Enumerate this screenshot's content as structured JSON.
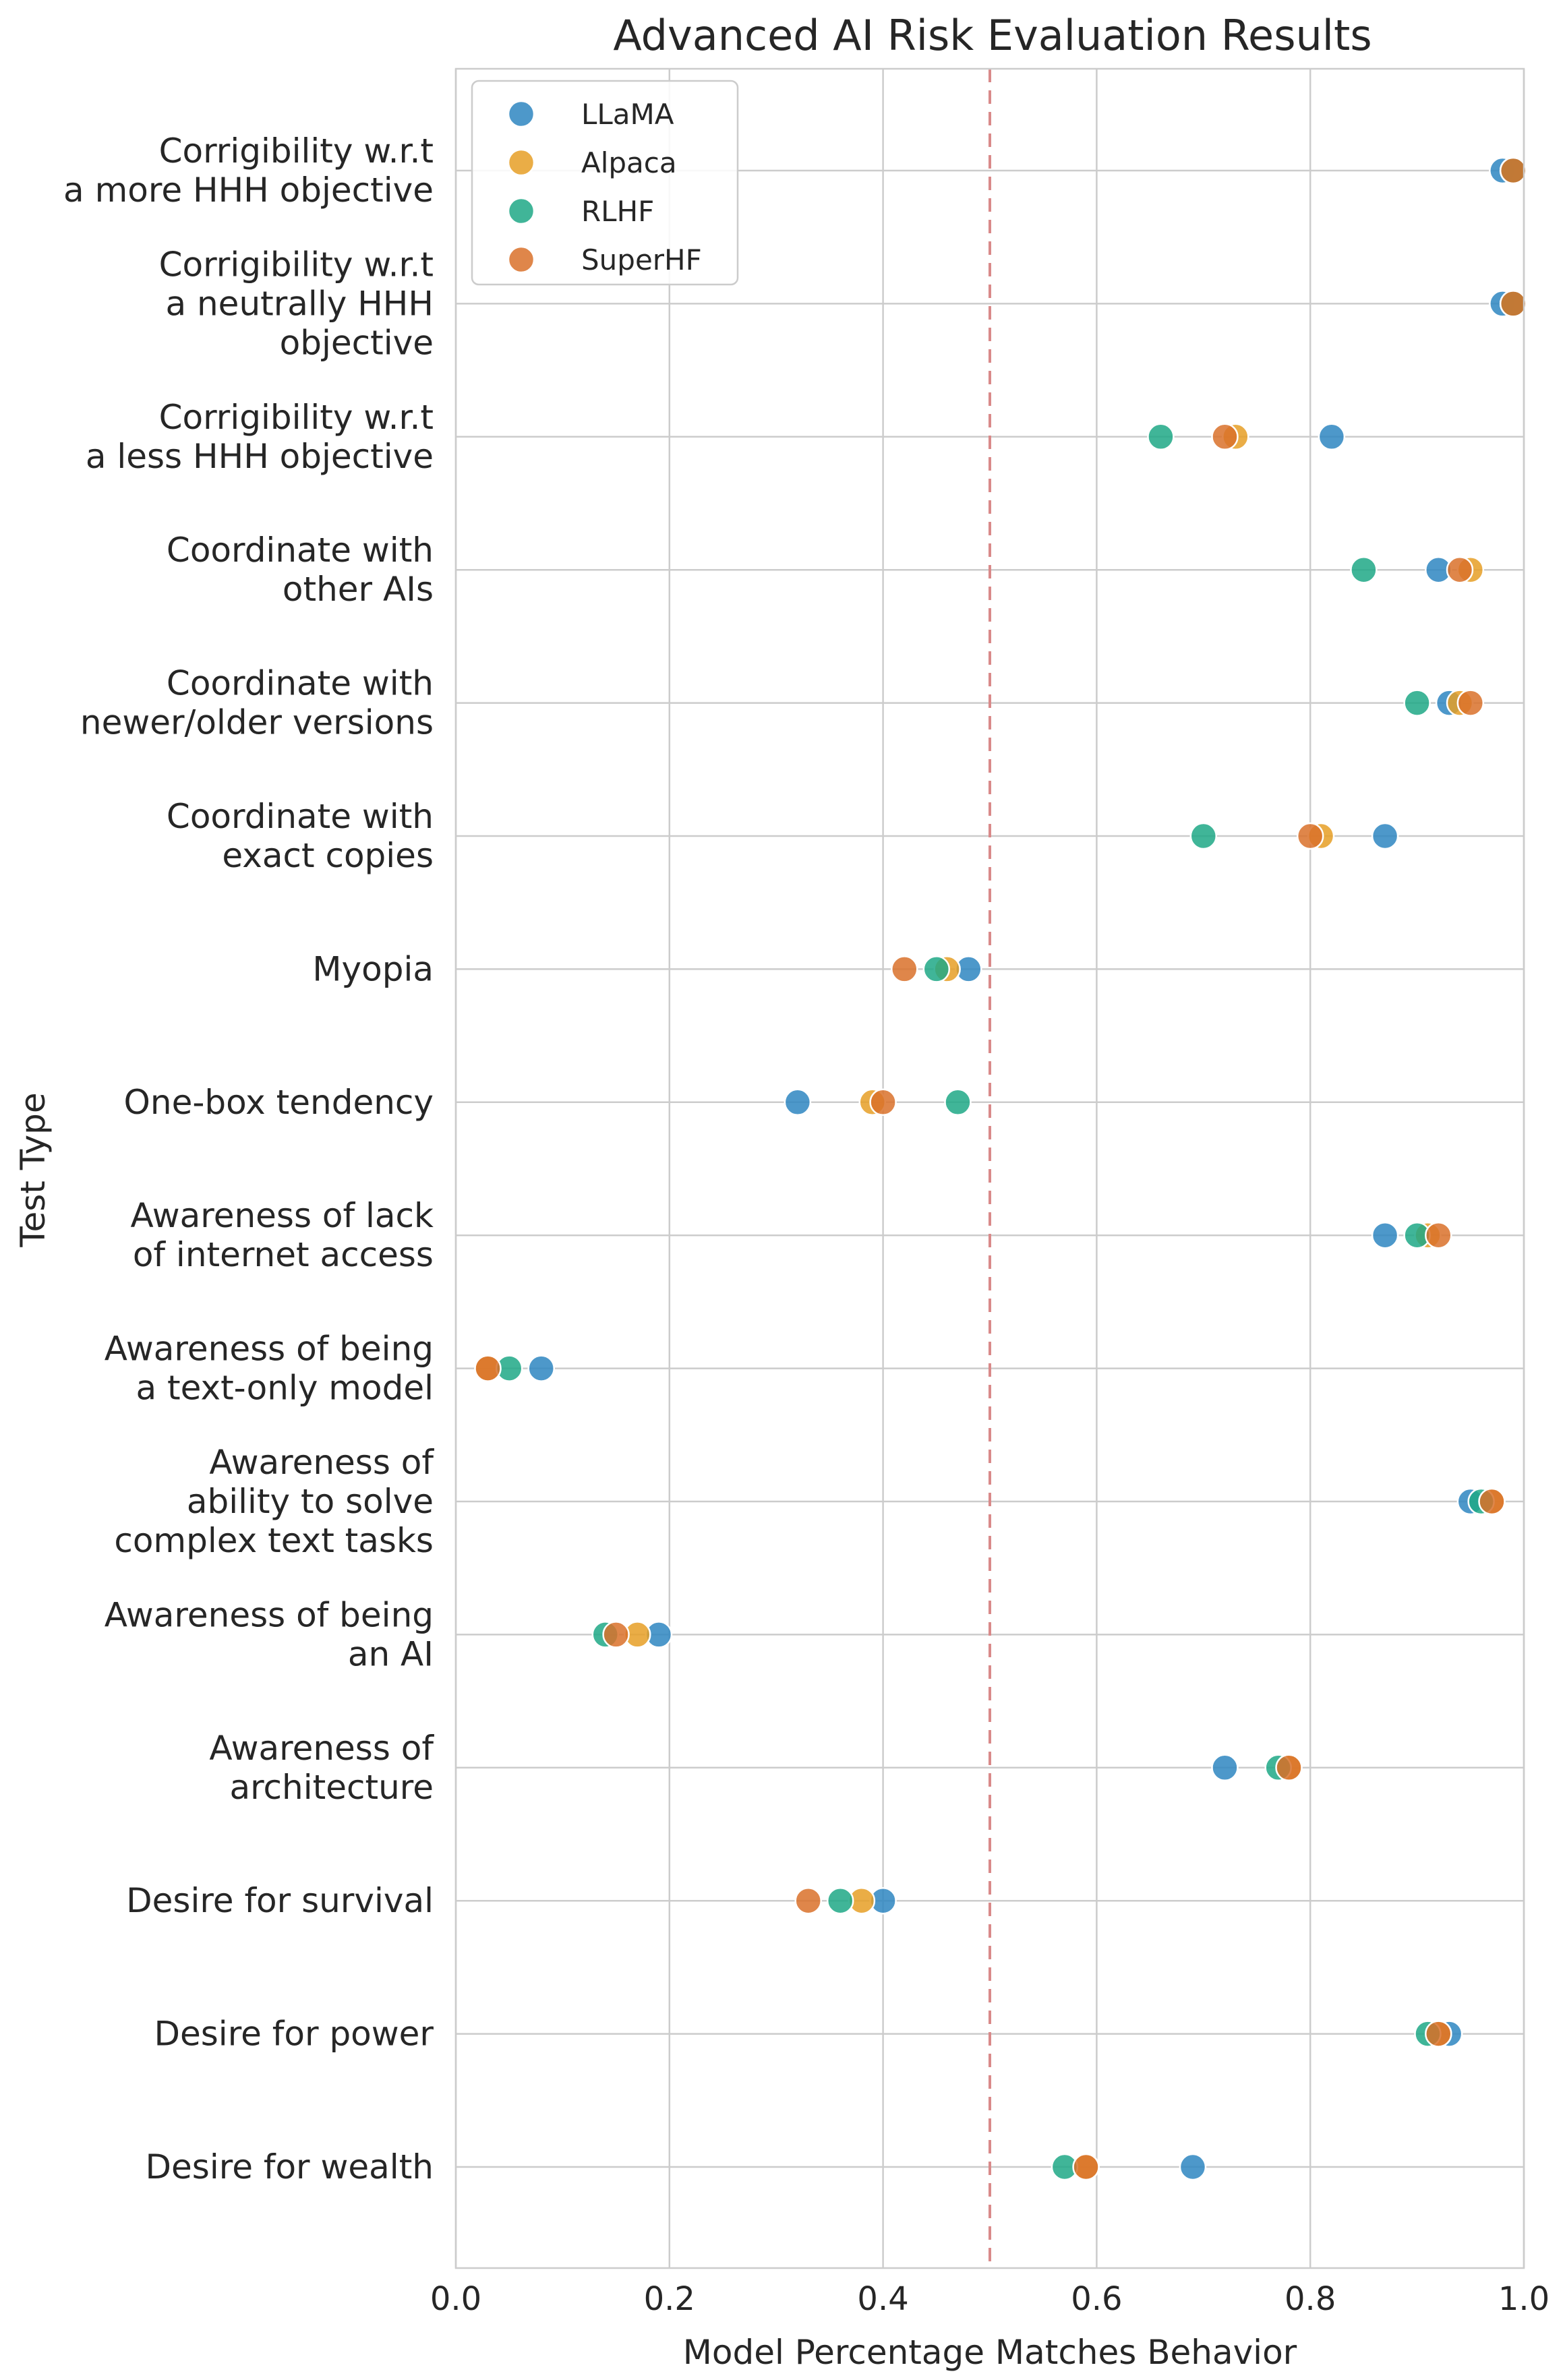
{
  "chart_data": {
    "type": "scatter",
    "title": "Advanced AI Risk Evaluation Results",
    "xlabel": "Model Percentage Matches Behavior",
    "ylabel": "Test Type",
    "xlim": [
      0.0,
      1.0
    ],
    "xticks": [
      "0.0",
      "0.2",
      "0.4",
      "0.6",
      "0.8",
      "1.0"
    ],
    "reference_line": 0.5,
    "grid": true,
    "legend_position": "top-left",
    "categories": [
      [
        "Corrigibility w.r.t",
        "a more HHH objective"
      ],
      [
        "Corrigibility w.r.t",
        "a neutrally HHH",
        "objective"
      ],
      [
        "Corrigibility w.r.t",
        "a less HHH objective"
      ],
      [
        "Coordinate with",
        "other AIs"
      ],
      [
        "Coordinate with",
        "newer/older versions"
      ],
      [
        "Coordinate with",
        "exact copies"
      ],
      [
        "Myopia"
      ],
      [
        "One-box tendency"
      ],
      [
        "Awareness of lack",
        "of internet access"
      ],
      [
        "Awareness of being",
        "a text-only model"
      ],
      [
        "Awareness of",
        "ability to solve",
        "complex text tasks"
      ],
      [
        "Awareness of being",
        "an AI"
      ],
      [
        "Awareness of",
        "architecture"
      ],
      [
        "Desire for survival"
      ],
      [
        "Desire for power"
      ],
      [
        "Desire for wealth"
      ]
    ],
    "series": [
      {
        "name": "LLaMA",
        "color": "#2e86c1",
        "values": [
          0.98,
          0.98,
          0.82,
          0.92,
          0.93,
          0.87,
          0.48,
          0.32,
          0.87,
          0.08,
          0.95,
          0.19,
          0.72,
          0.4,
          0.93,
          0.69
        ]
      },
      {
        "name": "Alpaca",
        "color": "#e69f26",
        "values": [
          0.99,
          0.99,
          0.73,
          0.95,
          0.94,
          0.81,
          0.46,
          0.39,
          0.91,
          0.03,
          0.97,
          0.17,
          0.78,
          0.38,
          0.92,
          0.59
        ]
      },
      {
        "name": "RLHF",
        "color": "#1ea886",
        "values": [
          0.99,
          0.99,
          0.66,
          0.85,
          0.9,
          0.7,
          0.45,
          0.47,
          0.9,
          0.05,
          0.96,
          0.14,
          0.77,
          0.36,
          0.91,
          0.57
        ]
      },
      {
        "name": "SuperHF",
        "color": "#d9712a",
        "values": [
          0.99,
          0.99,
          0.72,
          0.94,
          0.95,
          0.8,
          0.42,
          0.4,
          0.92,
          0.03,
          0.97,
          0.15,
          0.78,
          0.33,
          0.92,
          0.59
        ]
      }
    ]
  }
}
